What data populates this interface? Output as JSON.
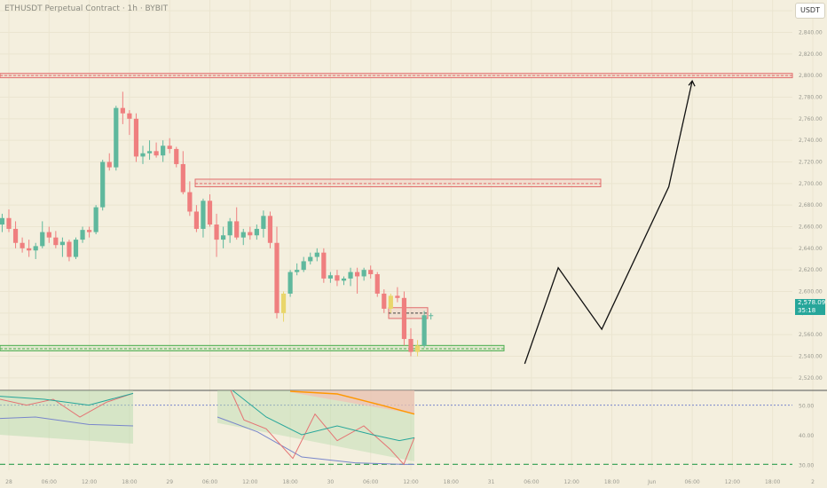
{
  "header": {
    "symbol_title": "ETHUSDT Perpetual Contract · 1h · BYBIT",
    "currency": "USDT"
  },
  "price_tag": {
    "price": "2,578.09",
    "countdown": "35:18"
  },
  "colors": {
    "background": "#f4efde",
    "bull": "#5fb89d",
    "bear": "#ef7f7f",
    "neutral_candle": "#e9d66b",
    "resistance": "#e26d6d",
    "support": "#4caf50",
    "price_tag": "#26a69a",
    "rsi_line": "#e57373",
    "rsi_ma": "#26a69a",
    "band_line": "#7986cb",
    "band_upper": "#ff9800"
  },
  "chart_data": {
    "type": "candlestick",
    "y_axis": {
      "ticks": [
        2520,
        2540,
        2560,
        2580,
        2600,
        2620,
        2640,
        2660,
        2680,
        2700,
        2720,
        2740,
        2760,
        2780,
        2800,
        2820,
        2840,
        2860
      ],
      "tick_labels": [
        "2,520.00",
        "2,540.00",
        "2,560.00",
        "2,580.00",
        "2,600.00",
        "2,620.00",
        "2,640.00",
        "2,660.00",
        "2,680.00",
        "2,700.00",
        "2,720.00",
        "2,740.00",
        "2,760.00",
        "2,780.00",
        "2,800.00",
        "2,820.00",
        "2,840.00",
        "2,860.00"
      ],
      "range": [
        2510,
        2870
      ]
    },
    "x_axis": {
      "tick_labels": [
        "28",
        "06:00",
        "12:00",
        "18:00",
        "29",
        "06:00",
        "12:00",
        "18:00",
        "30",
        "06:00",
        "12:00",
        "18:00",
        "31",
        "06:00",
        "12:00",
        "18:00",
        "Jun",
        "06:00",
        "12:00",
        "18:00",
        "2"
      ],
      "hours_from_start": [
        0,
        6,
        12,
        18,
        24,
        30,
        36,
        42,
        48,
        54,
        60,
        66,
        72,
        78,
        84,
        90,
        96,
        102,
        108,
        114,
        120
      ]
    },
    "candles": [
      {
        "o": 2648,
        "h": 2655,
        "l": 2638,
        "c": 2642
      },
      {
        "o": 2642,
        "h": 2650,
        "l": 2636,
        "c": 2646
      },
      {
        "o": 2646,
        "h": 2652,
        "l": 2642,
        "c": 2648
      },
      {
        "o": 2648,
        "h": 2652,
        "l": 2640,
        "c": 2643
      },
      {
        "o": 2643,
        "h": 2648,
        "l": 2637,
        "c": 2640
      },
      {
        "o": 2640,
        "h": 2646,
        "l": 2635,
        "c": 2637
      },
      {
        "o": 2637,
        "h": 2648,
        "l": 2634,
        "c": 2646
      },
      {
        "o": 2646,
        "h": 2650,
        "l": 2640,
        "c": 2641
      },
      {
        "o": 2641,
        "h": 2650,
        "l": 2636,
        "c": 2648
      },
      {
        "o": 2648,
        "h": 2652,
        "l": 2635,
        "c": 2637
      },
      {
        "o": 2637,
        "h": 2652,
        "l": 2628,
        "c": 2650
      },
      {
        "o": 2650,
        "h": 2665,
        "l": 2645,
        "c": 2662
      },
      {
        "o": 2662,
        "h": 2672,
        "l": 2655,
        "c": 2668
      },
      {
        "o": 2668,
        "h": 2676,
        "l": 2655,
        "c": 2658
      },
      {
        "o": 2658,
        "h": 2665,
        "l": 2640,
        "c": 2645
      },
      {
        "o": 2645,
        "h": 2650,
        "l": 2636,
        "c": 2640
      },
      {
        "o": 2640,
        "h": 2648,
        "l": 2632,
        "c": 2638
      },
      {
        "o": 2638,
        "h": 2645,
        "l": 2630,
        "c": 2642
      },
      {
        "o": 2642,
        "h": 2665,
        "l": 2640,
        "c": 2655
      },
      {
        "o": 2655,
        "h": 2660,
        "l": 2645,
        "c": 2650
      },
      {
        "o": 2650,
        "h": 2656,
        "l": 2640,
        "c": 2643
      },
      {
        "o": 2643,
        "h": 2650,
        "l": 2632,
        "c": 2646
      },
      {
        "o": 2646,
        "h": 2648,
        "l": 2628,
        "c": 2632
      },
      {
        "o": 2632,
        "h": 2650,
        "l": 2630,
        "c": 2648
      },
      {
        "o": 2648,
        "h": 2660,
        "l": 2645,
        "c": 2657
      },
      {
        "o": 2657,
        "h": 2660,
        "l": 2650,
        "c": 2655
      },
      {
        "o": 2655,
        "h": 2680,
        "l": 2653,
        "c": 2678
      },
      {
        "o": 2678,
        "h": 2722,
        "l": 2675,
        "c": 2720
      },
      {
        "o": 2720,
        "h": 2728,
        "l": 2712,
        "c": 2715
      },
      {
        "o": 2715,
        "h": 2772,
        "l": 2712,
        "c": 2770
      },
      {
        "o": 2770,
        "h": 2785,
        "l": 2755,
        "c": 2765
      },
      {
        "o": 2765,
        "h": 2768,
        "l": 2745,
        "c": 2760
      },
      {
        "o": 2760,
        "h": 2765,
        "l": 2720,
        "c": 2725
      },
      {
        "o": 2725,
        "h": 2735,
        "l": 2718,
        "c": 2728
      },
      {
        "o": 2728,
        "h": 2740,
        "l": 2722,
        "c": 2730
      },
      {
        "o": 2730,
        "h": 2738,
        "l": 2724,
        "c": 2726
      },
      {
        "o": 2726,
        "h": 2740,
        "l": 2720,
        "c": 2735
      },
      {
        "o": 2735,
        "h": 2742,
        "l": 2728,
        "c": 2732
      },
      {
        "o": 2732,
        "h": 2734,
        "l": 2715,
        "c": 2718
      },
      {
        "o": 2718,
        "h": 2730,
        "l": 2690,
        "c": 2692
      },
      {
        "o": 2692,
        "h": 2702,
        "l": 2670,
        "c": 2674
      },
      {
        "o": 2674,
        "h": 2680,
        "l": 2655,
        "c": 2658
      },
      {
        "o": 2658,
        "h": 2686,
        "l": 2650,
        "c": 2684
      },
      {
        "o": 2684,
        "h": 2690,
        "l": 2660,
        "c": 2662
      },
      {
        "o": 2662,
        "h": 2672,
        "l": 2632,
        "c": 2648
      },
      {
        "o": 2648,
        "h": 2660,
        "l": 2640,
        "c": 2652
      },
      {
        "o": 2652,
        "h": 2668,
        "l": 2645,
        "c": 2665
      },
      {
        "o": 2665,
        "h": 2678,
        "l": 2648,
        "c": 2650
      },
      {
        "o": 2650,
        "h": 2658,
        "l": 2643,
        "c": 2655
      },
      {
        "o": 2655,
        "h": 2660,
        "l": 2648,
        "c": 2652
      },
      {
        "o": 2652,
        "h": 2662,
        "l": 2648,
        "c": 2658
      },
      {
        "o": 2658,
        "h": 2675,
        "l": 2650,
        "c": 2670
      },
      {
        "o": 2670,
        "h": 2674,
        "l": 2640,
        "c": 2645
      },
      {
        "o": 2645,
        "h": 2660,
        "l": 2575,
        "c": 2580
      },
      {
        "o": 2580,
        "h": 2600,
        "l": 2572,
        "c": 2598
      },
      {
        "o": 2598,
        "h": 2620,
        "l": 2595,
        "c": 2618
      },
      {
        "o": 2618,
        "h": 2626,
        "l": 2615,
        "c": 2620
      },
      {
        "o": 2620,
        "h": 2632,
        "l": 2618,
        "c": 2628
      },
      {
        "o": 2628,
        "h": 2636,
        "l": 2625,
        "c": 2632
      },
      {
        "o": 2632,
        "h": 2640,
        "l": 2628,
        "c": 2636
      },
      {
        "o": 2636,
        "h": 2640,
        "l": 2608,
        "c": 2612
      },
      {
        "o": 2612,
        "h": 2618,
        "l": 2608,
        "c": 2615
      },
      {
        "o": 2615,
        "h": 2620,
        "l": 2605,
        "c": 2610
      },
      {
        "o": 2610,
        "h": 2614,
        "l": 2606,
        "c": 2612
      },
      {
        "o": 2612,
        "h": 2622,
        "l": 2605,
        "c": 2618
      },
      {
        "o": 2618,
        "h": 2622,
        "l": 2598,
        "c": 2614
      },
      {
        "o": 2614,
        "h": 2622,
        "l": 2610,
        "c": 2620
      },
      {
        "o": 2620,
        "h": 2624,
        "l": 2612,
        "c": 2616
      },
      {
        "o": 2616,
        "h": 2618,
        "l": 2595,
        "c": 2598
      },
      {
        "o": 2598,
        "h": 2602,
        "l": 2580,
        "c": 2584
      },
      {
        "o": 2584,
        "h": 2598,
        "l": 2580,
        "c": 2596
      },
      {
        "o": 2596,
        "h": 2604,
        "l": 2590,
        "c": 2594
      },
      {
        "o": 2594,
        "h": 2600,
        "l": 2550,
        "c": 2556
      },
      {
        "o": 2556,
        "h": 2566,
        "l": 2540,
        "c": 2544
      },
      {
        "o": 2544,
        "h": 2555,
        "l": 2540,
        "c": 2550
      },
      {
        "o": 2550,
        "h": 2582,
        "l": 2548,
        "c": 2578
      },
      {
        "o": 2578,
        "h": 2580,
        "l": 2574,
        "c": 2578
      }
    ],
    "levels": [
      {
        "name": "resistance",
        "top": 2802,
        "bottom": 2798,
        "line": 2800
      },
      {
        "name": "resistance",
        "top": 2704,
        "bottom": 2697,
        "line": 2700
      },
      {
        "name": "resistance",
        "top": 2585,
        "bottom": 2575,
        "line": 2580
      },
      {
        "name": "support",
        "top": 2550,
        "bottom": 2545,
        "line": 2547
      }
    ],
    "projection": {
      "hours": [
        77,
        82,
        88.5,
        98.5,
        102
      ],
      "prices": [
        2533,
        2622,
        2565,
        2697,
        2795
      ]
    },
    "rsi": {
      "ticks": [
        30,
        40,
        50
      ],
      "tick_labels": [
        "30.00",
        "40.00",
        "50.00"
      ],
      "range": [
        28,
        55
      ],
      "overbought": 50,
      "oversold": 30
    },
    "grid": true
  }
}
